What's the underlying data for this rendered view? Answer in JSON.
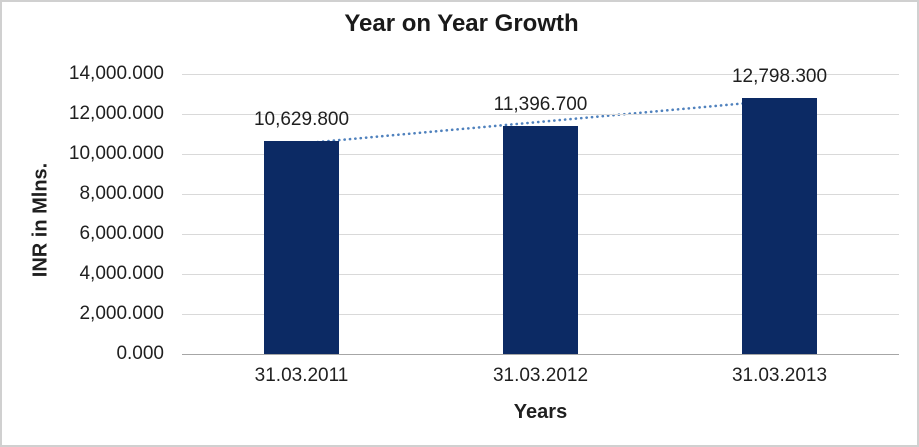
{
  "chart_data": {
    "type": "bar",
    "title": "Year on Year Growth",
    "xlabel": "Years",
    "ylabel": "INR in Mlns.",
    "categories": [
      "31.03.2011",
      "31.03.2012",
      "31.03.2013"
    ],
    "values": [
      10629.8,
      11396.7,
      12798.3
    ],
    "data_labels": [
      "10,629.800",
      "11,396.700",
      "12,798.300"
    ],
    "ylim": [
      0,
      14000
    ],
    "ytick_step": 2000,
    "ytick_labels": [
      "0.000",
      "2,000.000",
      "4,000.000",
      "6,000.000",
      "8,000.000",
      "10,000.000",
      "12,000.000",
      "14,000.000"
    ],
    "grid": "horizontal",
    "legend": "none",
    "trendline": {
      "type": "linear",
      "style": "dotted",
      "color": "#4F81BD"
    },
    "colors": {
      "bar": "#0C2A64",
      "gridline": "#D9D9D9",
      "axis_line": "#A6A6A6",
      "text": "#1F1F1F",
      "frame_border": "#D0D0D0",
      "background": "#FFFFFF"
    }
  }
}
